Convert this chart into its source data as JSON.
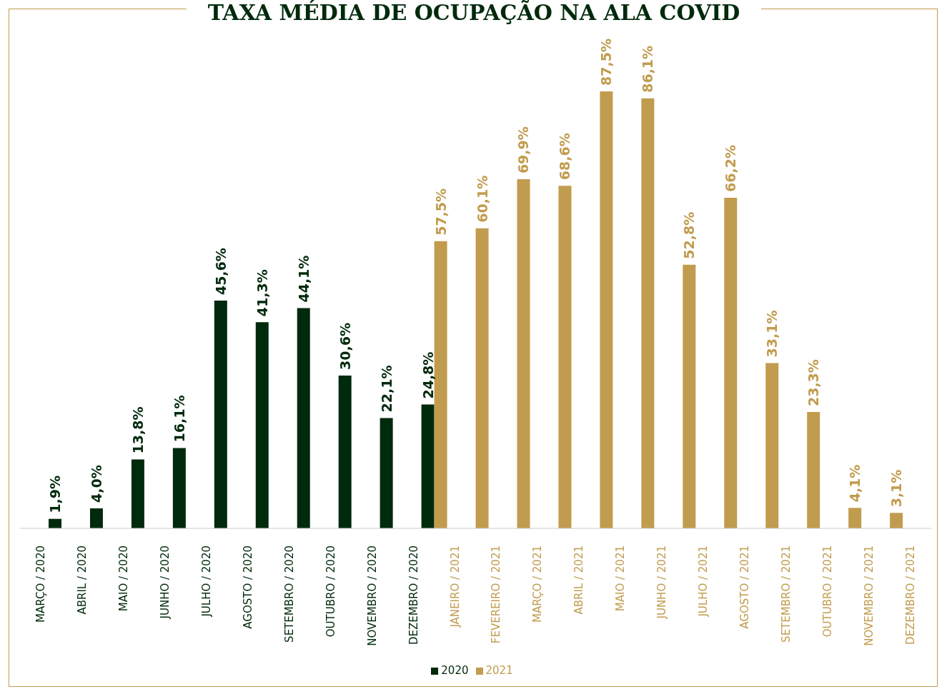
{
  "chart_data": {
    "type": "bar",
    "title": "TAXA MÉDIA DE OCUPAÇÃO NA ALA COVID",
    "categories": [
      "MARÇO / 2020",
      "ABRIL / 2020",
      "MAIO / 2020",
      "JUNHO / 2020",
      "JULHO / 2020",
      "AGOSTO / 2020",
      "SETEMBRO / 2020",
      "OUTUBRO / 2020",
      "NOVEMBRO / 2020",
      "DEZEMBRO / 2020",
      "JANEIRO / 2021",
      "FEVEREIRO / 2021",
      "MARÇO / 2021",
      "ABRIL / 2021",
      "MAIO / 2021",
      "JUNHO / 2021",
      "JULHO / 2021",
      "AGOSTO / 2021",
      "SETEMBRO / 2021",
      "OUTUBRO / 2021",
      "NOVEMBRO / 2021",
      "DEZEMBRO / 2021"
    ],
    "series": [
      {
        "name": "2020",
        "color": "#002a0c",
        "values": [
          1.9,
          4.0,
          13.8,
          16.1,
          45.6,
          41.3,
          44.1,
          30.6,
          22.1,
          24.8,
          null,
          null,
          null,
          null,
          null,
          null,
          null,
          null,
          null,
          null,
          null,
          null
        ],
        "value_labels": [
          "1,9%",
          "4,0%",
          "13,8%",
          "16,1%",
          "45,6%",
          "41,3%",
          "44,1%",
          "30,6%",
          "22,1%",
          "24,8%",
          null,
          null,
          null,
          null,
          null,
          null,
          null,
          null,
          null,
          null,
          null,
          null
        ]
      },
      {
        "name": "2021",
        "color": "#c19c4e",
        "values": [
          null,
          null,
          null,
          null,
          null,
          null,
          null,
          null,
          null,
          null,
          57.5,
          60.1,
          69.9,
          68.6,
          87.5,
          86.1,
          52.8,
          66.2,
          33.1,
          23.3,
          4.1,
          3.1
        ],
        "value_labels": [
          null,
          null,
          null,
          null,
          null,
          null,
          null,
          null,
          null,
          null,
          "57,5%",
          "60,1%",
          "69,9%",
          "68,6%",
          "87,5%",
          "86,1%",
          "52,8%",
          "66,2%",
          "33,1%",
          "23,3%",
          "4,1%",
          "3,1%"
        ]
      }
    ],
    "legend": "bottom",
    "grid": false
  }
}
